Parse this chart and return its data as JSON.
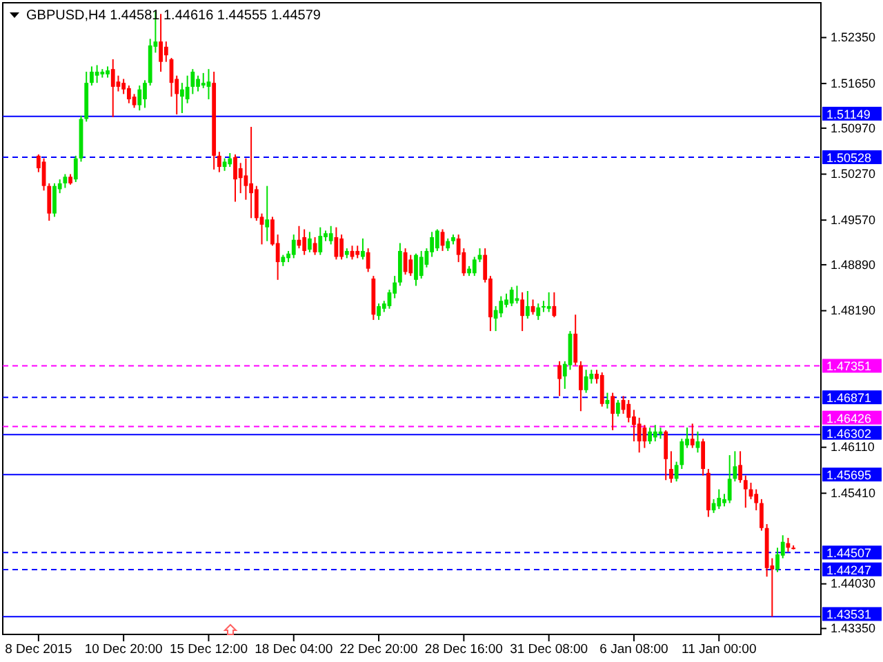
{
  "chart_data": {
    "type": "candlestick",
    "title": "GBPUSD,H4  1.44581 1.44616 1.44555 1.44579",
    "categories": [
      "8 Dec 2015",
      null,
      null,
      null,
      null,
      null,
      null,
      null,
      null,
      null,
      null,
      null,
      null,
      null,
      null,
      null,
      "10 Dec 20:00",
      null,
      null,
      null,
      null,
      null,
      null,
      null,
      null,
      null,
      null,
      null,
      null,
      null,
      null,
      null,
      "15 Dec 12:00",
      null,
      null,
      null,
      null,
      null,
      null,
      null,
      null,
      null,
      null,
      null,
      null,
      null,
      null,
      null,
      "18 Dec 04:00",
      null,
      null,
      null,
      null,
      null,
      null,
      null,
      null,
      null,
      null,
      null,
      null,
      null,
      null,
      null,
      "22 Dec 20:00",
      null,
      null,
      null,
      null,
      null,
      null,
      null,
      null,
      null,
      null,
      null,
      null,
      null,
      null,
      null,
      "28 Dec 16:00",
      null,
      null,
      null,
      null,
      null,
      null,
      null,
      null,
      null,
      null,
      null,
      null,
      null,
      null,
      null,
      "31 Dec 08:00",
      null,
      null,
      null,
      null,
      null,
      null,
      null,
      null,
      null,
      null,
      null,
      null,
      null,
      null,
      null,
      "6 Jan 08:00",
      null,
      null,
      null,
      null,
      null,
      null,
      null,
      null,
      null,
      null,
      null,
      null,
      null,
      null,
      null,
      "11 Jan 00:00",
      null,
      null,
      null,
      null,
      null,
      null,
      null,
      null,
      null,
      null,
      null,
      null,
      null,
      null
    ],
    "ohlc": [
      [
        1.5055,
        1.5057,
        1.503,
        1.5036
      ],
      [
        1.5046,
        1.5051,
        1.5002,
        1.5009
      ],
      [
        1.5009,
        1.5013,
        1.4956,
        1.4967
      ],
      [
        1.4967,
        1.5013,
        1.4962,
        1.5009
      ],
      [
        1.5004,
        1.5019,
        1.4998,
        1.5013
      ],
      [
        1.5013,
        1.5027,
        1.5006,
        1.5023
      ],
      [
        1.5023,
        1.5027,
        1.5011,
        1.5013
      ],
      [
        1.5019,
        1.5055,
        1.5015,
        1.5051
      ],
      [
        1.5051,
        1.5116,
        1.5046,
        1.5111
      ],
      [
        1.5111,
        1.5183,
        1.5107,
        1.5166
      ],
      [
        1.5166,
        1.5191,
        1.5162,
        1.5183
      ],
      [
        1.5177,
        1.5193,
        1.5166,
        1.5183
      ],
      [
        1.5179,
        1.5187,
        1.5174,
        1.5183
      ],
      [
        1.5179,
        1.5191,
        1.5174,
        1.5185
      ],
      [
        1.5187,
        1.5202,
        1.5114,
        1.516
      ],
      [
        1.5168,
        1.5177,
        1.5153,
        1.516
      ],
      [
        1.5166,
        1.5172,
        1.5149,
        1.5156
      ],
      [
        1.5158,
        1.5162,
        1.5135,
        1.5141
      ],
      [
        1.5145,
        1.5149,
        1.5128,
        1.5132
      ],
      [
        1.5132,
        1.5162,
        1.5124,
        1.5156
      ],
      [
        1.5141,
        1.517,
        1.5128,
        1.5166
      ],
      [
        1.5166,
        1.5233,
        1.5162,
        1.5223
      ],
      [
        1.5221,
        1.5275,
        1.5212,
        1.5229
      ],
      [
        1.5229,
        1.5271,
        1.5183,
        1.5198
      ],
      [
        1.5221,
        1.5229,
        1.5198,
        1.5208
      ],
      [
        1.5202,
        1.5204,
        1.5145,
        1.5166
      ],
      [
        1.5172,
        1.5177,
        1.5118,
        1.5149
      ],
      [
        1.5145,
        1.5166,
        1.512,
        1.5156
      ],
      [
        1.5141,
        1.5177,
        1.5135,
        1.516
      ],
      [
        1.516,
        1.5187,
        1.5149,
        1.5183
      ],
      [
        1.516,
        1.5177,
        1.5153,
        1.5172
      ],
      [
        1.5162,
        1.5181,
        1.5158,
        1.5166
      ],
      [
        1.516,
        1.5187,
        1.5141,
        1.5168
      ],
      [
        1.5166,
        1.5183,
        1.5034,
        1.5055
      ],
      [
        1.5055,
        1.5061,
        1.503,
        1.5038
      ],
      [
        1.5038,
        1.5051,
        1.5032,
        1.5046
      ],
      [
        1.5042,
        1.5059,
        1.5038,
        1.5051
      ],
      [
        1.5053,
        1.5057,
        1.4985,
        1.5019
      ],
      [
        1.5036,
        1.5044,
        1.4998,
        1.5021
      ],
      [
        1.5025,
        1.5051,
        1.4988,
        1.5009
      ],
      [
        1.5013,
        1.5099,
        1.496,
        1.4998
      ],
      [
        1.5004,
        1.5009,
        1.4956,
        1.496
      ],
      [
        1.4962,
        1.4967,
        1.492,
        1.495
      ],
      [
        1.4946,
        1.5009,
        1.4925,
        1.4958
      ],
      [
        1.4958,
        1.4962,
        1.4918,
        1.492
      ],
      [
        1.4922,
        1.4935,
        1.4866,
        1.4893
      ],
      [
        1.4893,
        1.4904,
        1.4887,
        1.4901
      ],
      [
        1.4899,
        1.491,
        1.4893,
        1.4906
      ],
      [
        1.4904,
        1.4935,
        1.4899,
        1.4927
      ],
      [
        1.4927,
        1.4948,
        1.4914,
        1.4918
      ],
      [
        1.4931,
        1.4943,
        1.4904,
        1.491
      ],
      [
        1.4912,
        1.4939,
        1.4908,
        1.4929
      ],
      [
        1.4922,
        1.4931,
        1.4904,
        1.4908
      ],
      [
        1.4908,
        1.4946,
        1.4904,
        1.4933
      ],
      [
        1.4931,
        1.4941,
        1.4925,
        1.4937
      ],
      [
        1.4925,
        1.4948,
        1.492,
        1.4937
      ],
      [
        1.4931,
        1.4946,
        1.4897,
        1.4901
      ],
      [
        1.4929,
        1.4935,
        1.4897,
        1.4901
      ],
      [
        1.4904,
        1.4914,
        1.4899,
        1.491
      ],
      [
        1.491,
        1.4918,
        1.4897,
        1.4901
      ],
      [
        1.491,
        1.4918,
        1.4899,
        1.4904
      ],
      [
        1.4901,
        1.4929,
        1.4897,
        1.491
      ],
      [
        1.4908,
        1.4914,
        1.4878,
        1.4883
      ],
      [
        1.4868,
        1.4872,
        1.4805,
        1.4813
      ],
      [
        1.4811,
        1.483,
        1.4805,
        1.4826
      ],
      [
        1.4822,
        1.4834,
        1.4817,
        1.483
      ],
      [
        1.4826,
        1.4851,
        1.4822,
        1.4847
      ],
      [
        1.4845,
        1.4872,
        1.4838,
        1.4862
      ],
      [
        1.4862,
        1.4922,
        1.4857,
        1.491
      ],
      [
        1.4908,
        1.4914,
        1.4874,
        1.4878
      ],
      [
        1.4897,
        1.4904,
        1.4872,
        1.4876
      ],
      [
        1.4866,
        1.4906,
        1.4857,
        1.4904
      ],
      [
        1.4872,
        1.491,
        1.4868,
        1.4901
      ],
      [
        1.4889,
        1.4914,
        1.4885,
        1.491
      ],
      [
        1.4908,
        1.4939,
        1.4901,
        1.4931
      ],
      [
        1.4914,
        1.4943,
        1.491,
        1.4941
      ],
      [
        1.4939,
        1.4943,
        1.491,
        1.4918
      ],
      [
        1.4914,
        1.4929,
        1.491,
        1.4925
      ],
      [
        1.4925,
        1.4935,
        1.492,
        1.4931
      ],
      [
        1.4929,
        1.4935,
        1.4893,
        1.4904
      ],
      [
        1.4908,
        1.4914,
        1.4872,
        1.4876
      ],
      [
        1.4876,
        1.4887,
        1.4872,
        1.4883
      ],
      [
        1.4876,
        1.4901,
        1.4872,
        1.4897
      ],
      [
        1.4897,
        1.4914,
        1.4893,
        1.4904
      ],
      [
        1.4904,
        1.4914,
        1.4862,
        1.4866
      ],
      [
        1.4868,
        1.4872,
        1.4788,
        1.4809
      ],
      [
        1.4807,
        1.4826,
        1.4788,
        1.482
      ],
      [
        1.4815,
        1.4841,
        1.4809,
        1.4834
      ],
      [
        1.4828,
        1.4845,
        1.4824,
        1.4836
      ],
      [
        1.483,
        1.4855,
        1.4826,
        1.4851
      ],
      [
        1.4834,
        1.4857,
        1.483,
        1.4838
      ],
      [
        1.4836,
        1.4847,
        1.4788,
        1.4811
      ],
      [
        1.4811,
        1.4849,
        1.4807,
        1.4826
      ],
      [
        1.4826,
        1.4836,
        1.4813,
        1.4817
      ],
      [
        1.4811,
        1.483,
        1.4805,
        1.4824
      ],
      [
        1.4824,
        1.4834,
        1.4817,
        1.4826
      ],
      [
        1.4822,
        1.4847,
        1.4817,
        1.4826
      ],
      [
        1.4826,
        1.4847,
        1.4809,
        1.4811
      ],
      [
        1.4736,
        1.4742,
        1.4689,
        1.4715
      ],
      [
        1.4719,
        1.4742,
        1.47,
        1.4738
      ],
      [
        1.4736,
        1.4788,
        1.4729,
        1.4784
      ],
      [
        1.4784,
        1.4813,
        1.4736,
        1.474
      ],
      [
        1.4736,
        1.4742,
        1.4666,
        1.4698
      ],
      [
        1.4698,
        1.4729,
        1.4694,
        1.4719
      ],
      [
        1.4715,
        1.4729,
        1.4708,
        1.4723
      ],
      [
        1.4723,
        1.4729,
        1.4708,
        1.4715
      ],
      [
        1.4721,
        1.4725,
        1.4673,
        1.4677
      ],
      [
        1.4677,
        1.4694,
        1.467,
        1.4683
      ],
      [
        1.4689,
        1.4694,
        1.4637,
        1.4662
      ],
      [
        1.4662,
        1.4683,
        1.4658,
        1.4679
      ],
      [
        1.4683,
        1.4689,
        1.4662,
        1.4668
      ],
      [
        1.4677,
        1.4683,
        1.4649,
        1.4656
      ],
      [
        1.4658,
        1.4668,
        1.462,
        1.4645
      ],
      [
        1.4647,
        1.4656,
        1.4603,
        1.462
      ],
      [
        1.4641,
        1.4645,
        1.461,
        1.462
      ],
      [
        1.462,
        1.4641,
        1.4616,
        1.4635
      ],
      [
        1.4626,
        1.4645,
        1.462,
        1.4635
      ],
      [
        1.4631,
        1.4641,
        1.4624,
        1.4635
      ],
      [
        1.4635,
        1.4637,
        1.4561,
        1.4593
      ],
      [
        1.4578,
        1.4605,
        1.4557,
        1.4563
      ],
      [
        1.4563,
        1.4589,
        1.4559,
        1.4584
      ],
      [
        1.4584,
        1.4624,
        1.4578,
        1.462
      ],
      [
        1.4614,
        1.4641,
        1.461,
        1.4624
      ],
      [
        1.4624,
        1.4647,
        1.461,
        1.4614
      ],
      [
        1.461,
        1.4635,
        1.4603,
        1.462
      ],
      [
        1.462,
        1.4624,
        1.4568,
        1.4578
      ],
      [
        1.4572,
        1.4578,
        1.4505,
        1.4515
      ],
      [
        1.4515,
        1.4532,
        1.4511,
        1.4526
      ],
      [
        1.4521,
        1.4547,
        1.4517,
        1.4534
      ],
      [
        1.4526,
        1.454,
        1.4521,
        1.4532
      ],
      [
        1.453,
        1.4599,
        1.4526,
        1.4563
      ],
      [
        1.4563,
        1.4605,
        1.4559,
        1.4582
      ],
      [
        1.4584,
        1.4605,
        1.4557,
        1.4561
      ],
      [
        1.4561,
        1.4568,
        1.4519,
        1.4547
      ],
      [
        1.4547,
        1.4557,
        1.4532,
        1.4536
      ],
      [
        1.454,
        1.4547,
        1.4515,
        1.4526
      ],
      [
        1.4526,
        1.4532,
        1.4484,
        1.4488
      ],
      [
        1.4488,
        1.4494,
        1.4414,
        1.4427
      ],
      [
        1.4431,
        1.4442,
        1.4353,
        1.4425
      ],
      [
        1.4425,
        1.4458,
        1.4421,
        1.4448
      ],
      [
        1.4446,
        1.4477,
        1.4442,
        1.4467
      ],
      [
        1.4465,
        1.4473,
        1.4452,
        1.4458
      ],
      [
        1.44581,
        1.44616,
        1.44555,
        1.44579
      ]
    ],
    "ylim": [
      1.4326,
      1.5288
    ],
    "yticks": [
      {
        "value": 1.5235,
        "label": "1.52350"
      },
      {
        "value": 1.5165,
        "label": "1.51650"
      },
      {
        "value": 1.5097,
        "label": "1.50970"
      },
      {
        "value": 1.5027,
        "label": "1.50270"
      },
      {
        "value": 1.4957,
        "label": "1.49570"
      },
      {
        "value": 1.4889,
        "label": "1.48890"
      },
      {
        "value": 1.4819,
        "label": "1.48190"
      },
      {
        "value": 1.4611,
        "label": "1.46110"
      },
      {
        "value": 1.4541,
        "label": "1.45410"
      },
      {
        "value": 1.4403,
        "label": "1.44030"
      },
      {
        "value": 1.4335,
        "label": "1.43350"
      }
    ],
    "ref_lines": [
      {
        "axis": "y",
        "value": 1.51149,
        "label": "1.51149",
        "color": "#0000ff",
        "line_style": "solid"
      },
      {
        "axis": "y",
        "value": 1.50528,
        "label": "1.50528",
        "color": "#0000ff",
        "line_style": "dashed"
      },
      {
        "axis": "y",
        "value": 1.47351,
        "label": "1.47351",
        "color": "#ff00ff",
        "line_style": "dashed"
      },
      {
        "axis": "y",
        "value": 1.46871,
        "label": "1.46871",
        "color": "#0000ff",
        "line_style": "dashed"
      },
      {
        "axis": "y",
        "value": 1.46426,
        "label": "1.46426",
        "color": "#ff00ff",
        "line_style": "dashed"
      },
      {
        "axis": "y",
        "value": 1.46302,
        "label": "1.46302",
        "color": "#0000ff",
        "line_style": "solid"
      },
      {
        "axis": "y",
        "value": 1.45695,
        "label": "1.45695",
        "color": "#0000ff",
        "line_style": "solid"
      },
      {
        "axis": "y",
        "value": 1.44507,
        "label": "1.44507",
        "color": "#0000ff",
        "line_style": "dashed"
      },
      {
        "axis": "y",
        "value": 1.44247,
        "label": "1.44247",
        "color": "#0000ff",
        "line_style": "dashed"
      },
      {
        "axis": "y",
        "value": 1.43531,
        "label": "1.43531",
        "color": "#0000ff",
        "line_style": "solid"
      }
    ],
    "grid": false
  }
}
